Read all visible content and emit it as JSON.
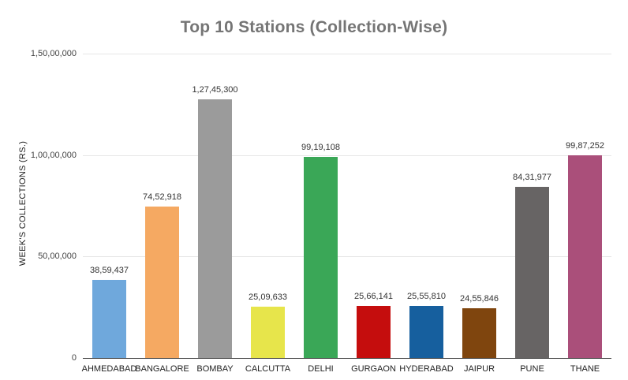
{
  "chart_data": {
    "type": "bar",
    "title": "Top 10 Stations (Collection-Wise)",
    "xlabel": "",
    "ylabel": "WEEK'S COLLECTIONS (RS.)",
    "categories": [
      "AHMEDABAD",
      "BANGALORE",
      "BOMBAY",
      "CALCUTTA",
      "DELHI",
      "GURGAON",
      "HYDERABAD",
      "JAIPUR",
      "PUNE",
      "THANE"
    ],
    "values": [
      3859437,
      7452918,
      12745300,
      2509633,
      9919108,
      2566141,
      2555810,
      2455846,
      8431977,
      9987252
    ],
    "value_labels": [
      "38,59,437",
      "74,52,918",
      "1,27,45,300",
      "25,09,633",
      "99,19,108",
      "25,66,141",
      "25,55,810",
      "24,55,846",
      "84,31,977",
      "99,87,252"
    ],
    "bar_colors": [
      "#6fa8dc",
      "#f5a962",
      "#9b9b9b",
      "#e7e54b",
      "#3aa757",
      "#c50d0d",
      "#165f9e",
      "#7f450e",
      "#676464",
      "#aa4f7a"
    ],
    "ylim": [
      0,
      15000000
    ],
    "yticks": [
      {
        "value": 0,
        "label": "0"
      },
      {
        "value": 5000000,
        "label": "50,00,000"
      },
      {
        "value": 10000000,
        "label": "1,00,00,000"
      },
      {
        "value": 15000000,
        "label": "1,50,00,000"
      }
    ],
    "grid": true,
    "legend": "none"
  },
  "colors": {
    "background": "#ffffff",
    "title": "#757575",
    "grid": "#e6e6e6",
    "axis_line": "#333333",
    "tick_label": "#444444",
    "value_label": "#333333",
    "category_label": "#222222",
    "y_axis_title": "#222222"
  }
}
